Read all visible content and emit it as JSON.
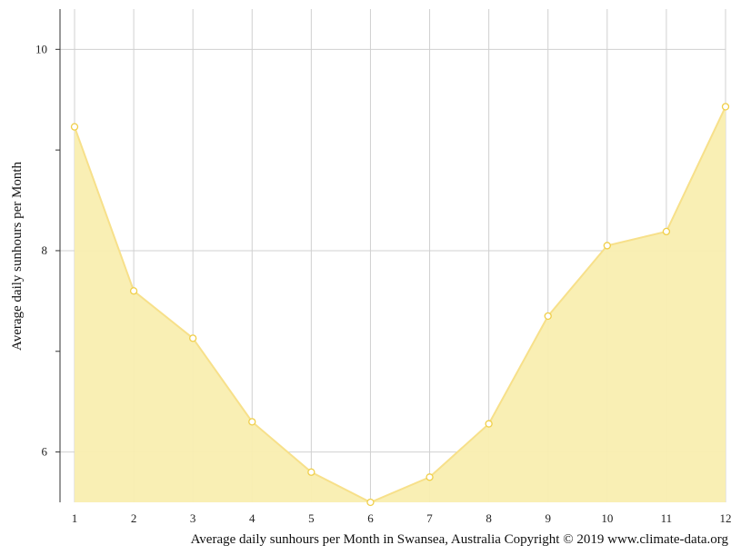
{
  "chart_data": {
    "type": "area",
    "ylabel": "Average daily sunhours per Month",
    "caption": "Average daily sunhours per Month in Swansea, Australia Copyright © 2019 www.climate-data.org",
    "x": [
      1,
      2,
      3,
      4,
      5,
      6,
      7,
      8,
      9,
      10,
      11,
      12
    ],
    "x_tick_labels": [
      "1",
      "2",
      "3",
      "4",
      "5",
      "6",
      "7",
      "8",
      "9",
      "10",
      "11",
      "12"
    ],
    "y_tick_labels": [
      "6",
      "8",
      "10"
    ],
    "series": [
      {
        "values": [
          9.23,
          7.6,
          7.13,
          6.3,
          5.8,
          5.5,
          5.75,
          6.28,
          7.35,
          8.05,
          8.19,
          9.43
        ]
      }
    ],
    "ylim": [
      5.5,
      10.4
    ],
    "xlim": [
      1,
      12
    ],
    "grid": true,
    "colors": {
      "line": "#f7e08a",
      "fill": "#f9eeb0",
      "marker_stroke": "#f0cf4a",
      "grid": "#d0d0d0",
      "axis": "#333333"
    }
  }
}
